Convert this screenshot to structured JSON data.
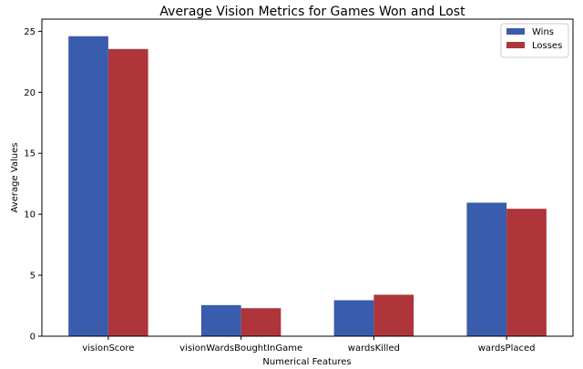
{
  "chart_data": {
    "type": "bar",
    "title": "Average Vision Metrics for Games Won and Lost",
    "xlabel": "Numerical Features",
    "ylabel": "Average Values",
    "categories": [
      "visionScore",
      "visionWardsBoughtInGame",
      "wardsKilled",
      "wardsPlaced"
    ],
    "series": [
      {
        "name": "Wins",
        "color": "#3a5cad",
        "values": [
          24.6,
          2.55,
          2.95,
          10.95
        ]
      },
      {
        "name": "Losses",
        "color": "#ae3539",
        "values": [
          23.55,
          2.3,
          3.4,
          10.45
        ]
      }
    ],
    "ylim": [
      0,
      26
    ],
    "yticks": [
      0,
      5,
      10,
      15,
      20,
      25
    ],
    "legend": "top-right",
    "grid": false
  }
}
